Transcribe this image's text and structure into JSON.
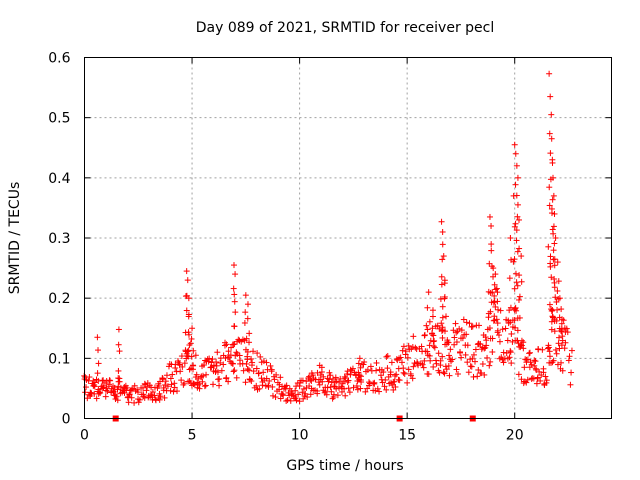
{
  "chart_data": {
    "type": "scatter",
    "title": "Day 089 of 2021, SRMTID for receiver pecl",
    "xlabel": "GPS time / hours",
    "ylabel": "SRMTID / TECUs",
    "xlim": [
      0,
      24.5
    ],
    "ylim": [
      0,
      0.6
    ],
    "xticks": [
      0,
      5,
      10,
      15,
      20
    ],
    "xtick_labels": [
      "0",
      "5",
      "10",
      "15",
      "20"
    ],
    "yticks": [
      0,
      0.1,
      0.2,
      0.3,
      0.4,
      0.5,
      0.6
    ],
    "ytick_labels": [
      "0",
      "0.1",
      "0.2",
      "0.3",
      "0.4",
      "0.5",
      "0.6"
    ],
    "grid": true,
    "marker": "+",
    "color": "#ff0000",
    "series": [
      {
        "name": "SRMTID",
        "baseline_profile": [
          [
            0.0,
            0.045
          ],
          [
            0.5,
            0.042
          ],
          [
            1.0,
            0.04
          ],
          [
            1.5,
            0.045
          ],
          [
            2.0,
            0.035
          ],
          [
            2.5,
            0.035
          ],
          [
            3.0,
            0.038
          ],
          [
            3.5,
            0.04
          ],
          [
            4.0,
            0.06
          ],
          [
            4.5,
            0.07
          ],
          [
            5.0,
            0.075
          ],
          [
            5.5,
            0.06
          ],
          [
            6.0,
            0.07
          ],
          [
            6.5,
            0.08
          ],
          [
            7.0,
            0.09
          ],
          [
            7.5,
            0.085
          ],
          [
            8.0,
            0.07
          ],
          [
            8.5,
            0.06
          ],
          [
            9.0,
            0.045
          ],
          [
            9.5,
            0.035
          ],
          [
            10.0,
            0.04
          ],
          [
            10.5,
            0.05
          ],
          [
            11.0,
            0.06
          ],
          [
            11.5,
            0.045
          ],
          [
            12.0,
            0.045
          ],
          [
            12.5,
            0.055
          ],
          [
            13.0,
            0.06
          ],
          [
            13.5,
            0.06
          ],
          [
            14.0,
            0.065
          ],
          [
            14.5,
            0.07
          ],
          [
            15.0,
            0.085
          ],
          [
            15.5,
            0.09
          ],
          [
            16.0,
            0.1
          ],
          [
            16.5,
            0.105
          ],
          [
            17.0,
            0.1
          ],
          [
            17.5,
            0.11
          ],
          [
            18.0,
            0.1
          ],
          [
            18.3,
            0.1
          ],
          [
            18.6,
            0.09
          ],
          [
            19.0,
            0.15
          ],
          [
            19.5,
            0.11
          ],
          [
            20.0,
            0.12
          ],
          [
            20.5,
            0.07
          ],
          [
            21.0,
            0.075
          ],
          [
            21.5,
            0.08
          ],
          [
            22.0,
            0.13
          ],
          [
            22.5,
            0.09
          ],
          [
            22.7,
            0.07
          ]
        ],
        "spikes": [
          [
            0.6,
            0.135
          ],
          [
            1.6,
            0.148
          ],
          [
            4.75,
            0.245
          ],
          [
            4.8,
            0.23
          ],
          [
            4.85,
            0.2
          ],
          [
            5.0,
            0.15
          ],
          [
            6.95,
            0.255
          ],
          [
            7.0,
            0.24
          ],
          [
            7.5,
            0.205
          ],
          [
            7.6,
            0.19
          ],
          [
            12.8,
            0.1
          ],
          [
            16.0,
            0.21
          ],
          [
            16.2,
            0.18
          ],
          [
            16.6,
            0.327
          ],
          [
            16.65,
            0.31
          ],
          [
            16.7,
            0.27
          ],
          [
            16.75,
            0.225
          ],
          [
            18.85,
            0.335
          ],
          [
            18.9,
            0.32
          ],
          [
            19.0,
            0.25
          ],
          [
            19.1,
            0.24
          ],
          [
            19.2,
            0.21
          ],
          [
            19.8,
            0.3
          ],
          [
            19.95,
            0.37
          ],
          [
            20.0,
            0.455
          ],
          [
            20.05,
            0.44
          ],
          [
            20.1,
            0.42
          ],
          [
            20.15,
            0.4
          ],
          [
            20.2,
            0.33
          ],
          [
            20.3,
            0.27
          ],
          [
            21.6,
            0.573
          ],
          [
            21.65,
            0.535
          ],
          [
            21.7,
            0.505
          ],
          [
            21.72,
            0.465
          ],
          [
            21.75,
            0.43
          ],
          [
            21.78,
            0.4
          ],
          [
            21.82,
            0.37
          ],
          [
            21.85,
            0.34
          ],
          [
            21.9,
            0.3
          ],
          [
            22.0,
            0.26
          ],
          [
            22.1,
            0.2
          ],
          [
            22.2,
            0.165
          ]
        ]
      }
    ],
    "gap_markers_x": [
      1.45,
      14.65,
      18.05
    ]
  }
}
